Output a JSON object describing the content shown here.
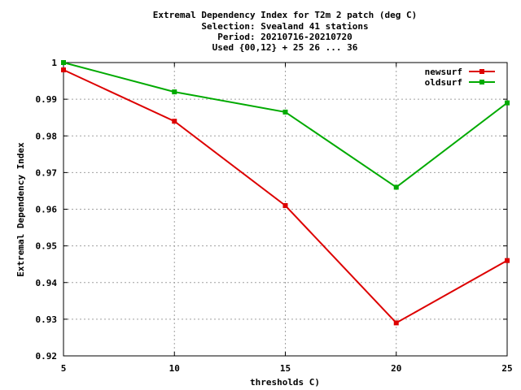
{
  "chart_data": {
    "type": "line",
    "title_lines": [
      "Extremal Dependency Index  for T2m 2 patch (deg C)",
      "Selection: Svealand     41 stations",
      "Period: 20210716-20210720",
      "Used {00,12} + 25 26 ... 36"
    ],
    "xlabel": "thresholds C)",
    "ylabel": "Extremal Dependency Index",
    "x": [
      5,
      10,
      15,
      20,
      25
    ],
    "x_ticks": [
      "5",
      "10",
      "15",
      "20",
      "25"
    ],
    "y_ticks": [
      "0.92",
      "0.93",
      "0.94",
      "0.95",
      "0.96",
      "0.97",
      "0.98",
      "0.99",
      "1"
    ],
    "xlim": [
      5,
      25
    ],
    "ylim": [
      0.92,
      1.0
    ],
    "grid": true,
    "legend_position": "top-right",
    "series": [
      {
        "name": "newsurf",
        "color": "#dd0000",
        "values": [
          0.998,
          0.984,
          0.961,
          0.929,
          0.946
        ]
      },
      {
        "name": "oldsurf",
        "color": "#00aa00",
        "values": [
          1.0,
          0.992,
          0.9865,
          0.966,
          0.989
        ]
      }
    ]
  }
}
